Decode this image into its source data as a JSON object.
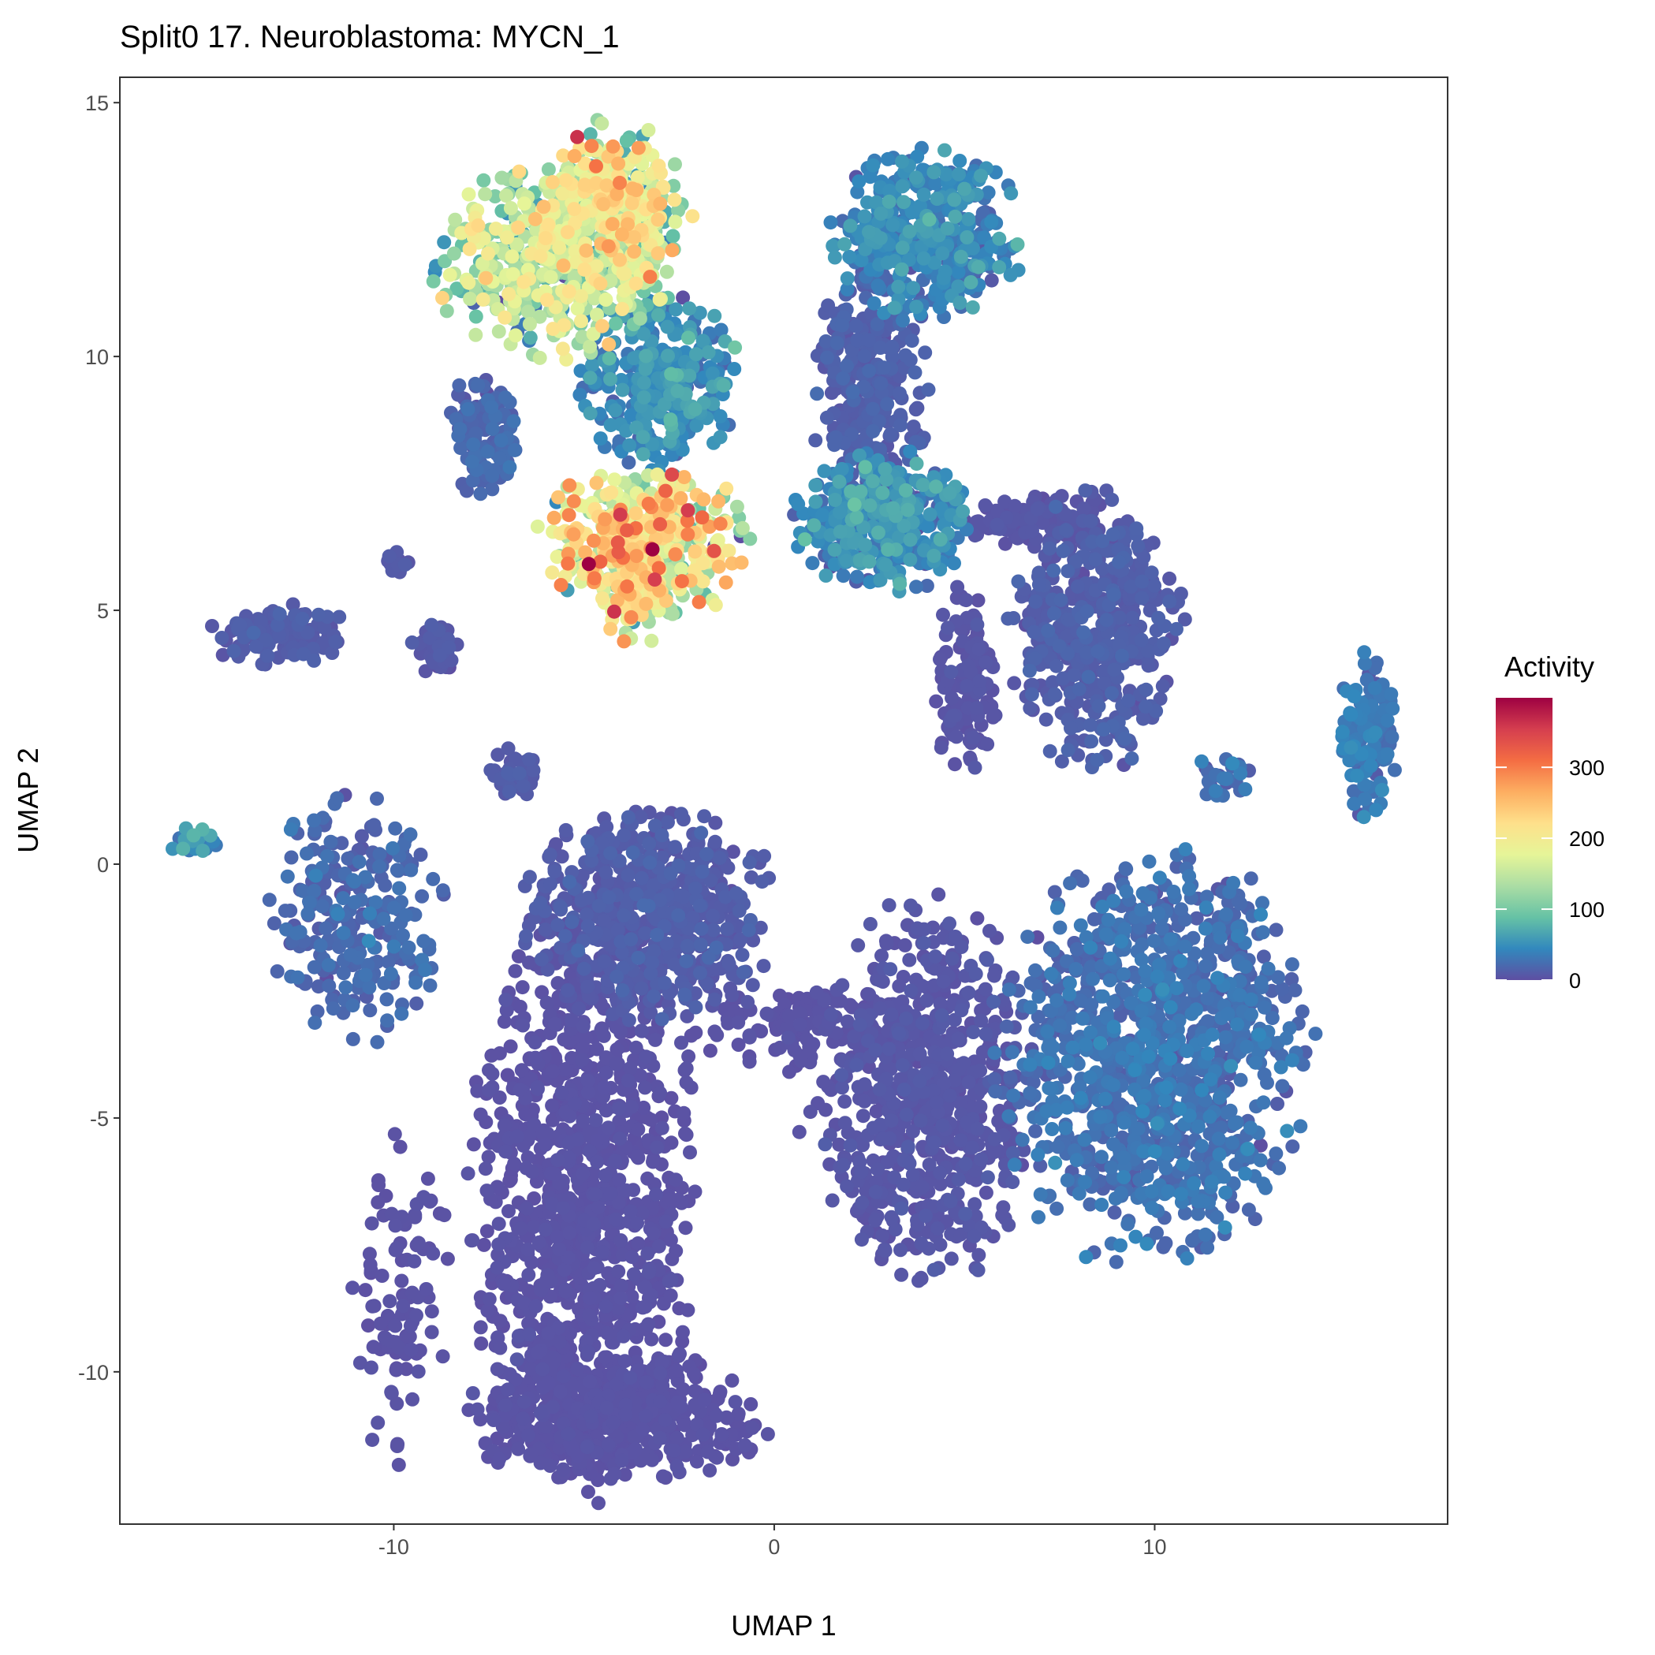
{
  "chart_data": {
    "type": "scatter",
    "title": "Split0 17. Neuroblastoma: MYCN_1",
    "xlabel": "UMAP 1",
    "ylabel": "UMAP 2",
    "xlim": [
      -17.2,
      17.7
    ],
    "ylim": [
      -13.0,
      15.5
    ],
    "xticks": [
      -10,
      0,
      10
    ],
    "yticks": [
      -10,
      -5,
      0,
      5,
      10,
      15
    ],
    "grid": false,
    "legend": {
      "title": "Activity",
      "position": "right",
      "type": "colorbar",
      "range": [
        0,
        398
      ],
      "ticks": [
        0,
        100,
        200,
        300
      ],
      "palette": [
        "#5E4FA2",
        "#3288BD",
        "#66C2A5",
        "#ABDDA4",
        "#E6F598",
        "#FEE08B",
        "#FDAE61",
        "#F46D43",
        "#D53E4F",
        "#9E0142"
      ]
    },
    "clusters": [
      {
        "cx": -5.8,
        "cy": 11.9,
        "sx": 1.5,
        "sy": 0.9,
        "activity": 135,
        "n": 500
      },
      {
        "cx": -4.1,
        "cy": 13.0,
        "sx": 0.9,
        "sy": 0.8,
        "activity": 165,
        "n": 300
      },
      {
        "cx": -3.0,
        "cy": 9.5,
        "sx": 1.0,
        "sy": 0.8,
        "activity": 45,
        "n": 350
      },
      {
        "cx": -7.6,
        "cy": 8.5,
        "sx": 0.45,
        "sy": 0.6,
        "activity": 18,
        "n": 120
      },
      {
        "cx": -3.4,
        "cy": 6.4,
        "sx": 1.3,
        "sy": 0.7,
        "activity": 180,
        "n": 450
      },
      {
        "cx": -3.6,
        "cy": 5.2,
        "sx": 0.5,
        "sy": 0.4,
        "activity": 175,
        "n": 80
      },
      {
        "cx": 4.0,
        "cy": 12.4,
        "sx": 1.2,
        "sy": 0.8,
        "activity": 40,
        "n": 400
      },
      {
        "cx": 2.6,
        "cy": 9.5,
        "sx": 0.7,
        "sy": 1.3,
        "activity": 12,
        "n": 300
      },
      {
        "cx": 2.8,
        "cy": 6.8,
        "sx": 1.1,
        "sy": 0.7,
        "activity": 45,
        "n": 350
      },
      {
        "cx": 7.0,
        "cy": 6.8,
        "sx": 1.0,
        "sy": 0.25,
        "activity": 5,
        "n": 120
      },
      {
        "cx": 8.4,
        "cy": 4.6,
        "sx": 1.1,
        "sy": 1.3,
        "activity": 12,
        "n": 450
      },
      {
        "cx": 5.0,
        "cy": 3.6,
        "sx": 0.4,
        "sy": 0.9,
        "activity": 5,
        "n": 120
      },
      {
        "cx": -13.0,
        "cy": 4.5,
        "sx": 0.9,
        "sy": 0.3,
        "activity": 10,
        "n": 120
      },
      {
        "cx": -8.9,
        "cy": 4.2,
        "sx": 0.3,
        "sy": 0.3,
        "activity": 8,
        "n": 40
      },
      {
        "cx": -9.9,
        "cy": 6.0,
        "sx": 0.15,
        "sy": 0.15,
        "activity": 8,
        "n": 12
      },
      {
        "cx": -6.9,
        "cy": 1.8,
        "sx": 0.35,
        "sy": 0.25,
        "activity": 10,
        "n": 40
      },
      {
        "cx": 15.6,
        "cy": 2.5,
        "sx": 0.35,
        "sy": 0.8,
        "activity": 30,
        "n": 130
      },
      {
        "cx": 11.8,
        "cy": 1.7,
        "sx": 0.5,
        "sy": 0.2,
        "activity": 25,
        "n": 25
      },
      {
        "cx": -15.2,
        "cy": 0.4,
        "sx": 0.3,
        "sy": 0.2,
        "activity": 50,
        "n": 20
      },
      {
        "cx": -11.0,
        "cy": -1.0,
        "sx": 1.1,
        "sy": 1.2,
        "activity": 20,
        "n": 260
      },
      {
        "cx": -3.3,
        "cy": -1.0,
        "sx": 1.6,
        "sy": 1.0,
        "activity": 10,
        "n": 600
      },
      {
        "cx": -5.0,
        "cy": -6.5,
        "sx": 1.4,
        "sy": 2.8,
        "activity": 3,
        "n": 1100
      },
      {
        "cx": -4.2,
        "cy": -10.9,
        "sx": 1.9,
        "sy": 0.6,
        "activity": 3,
        "n": 500
      },
      {
        "cx": 4.0,
        "cy": -4.5,
        "sx": 1.4,
        "sy": 1.8,
        "activity": 6,
        "n": 650
      },
      {
        "cx": 10.0,
        "cy": -3.8,
        "sx": 2.0,
        "sy": 1.9,
        "activity": 25,
        "n": 1100
      },
      {
        "cx": 1.0,
        "cy": -3.2,
        "sx": 1.5,
        "sy": 0.4,
        "activity": 3,
        "n": 120
      },
      {
        "cx": -9.8,
        "cy": -8.5,
        "sx": 0.6,
        "sy": 1.6,
        "activity": 3,
        "n": 100
      }
    ],
    "highlight_points": [
      {
        "x": -3.2,
        "y": 6.2,
        "activity": 398
      },
      {
        "x": -3.3,
        "y": 7.1,
        "activity": 300
      },
      {
        "x": -4.1,
        "y": 13.8,
        "activity": 260
      }
    ]
  }
}
